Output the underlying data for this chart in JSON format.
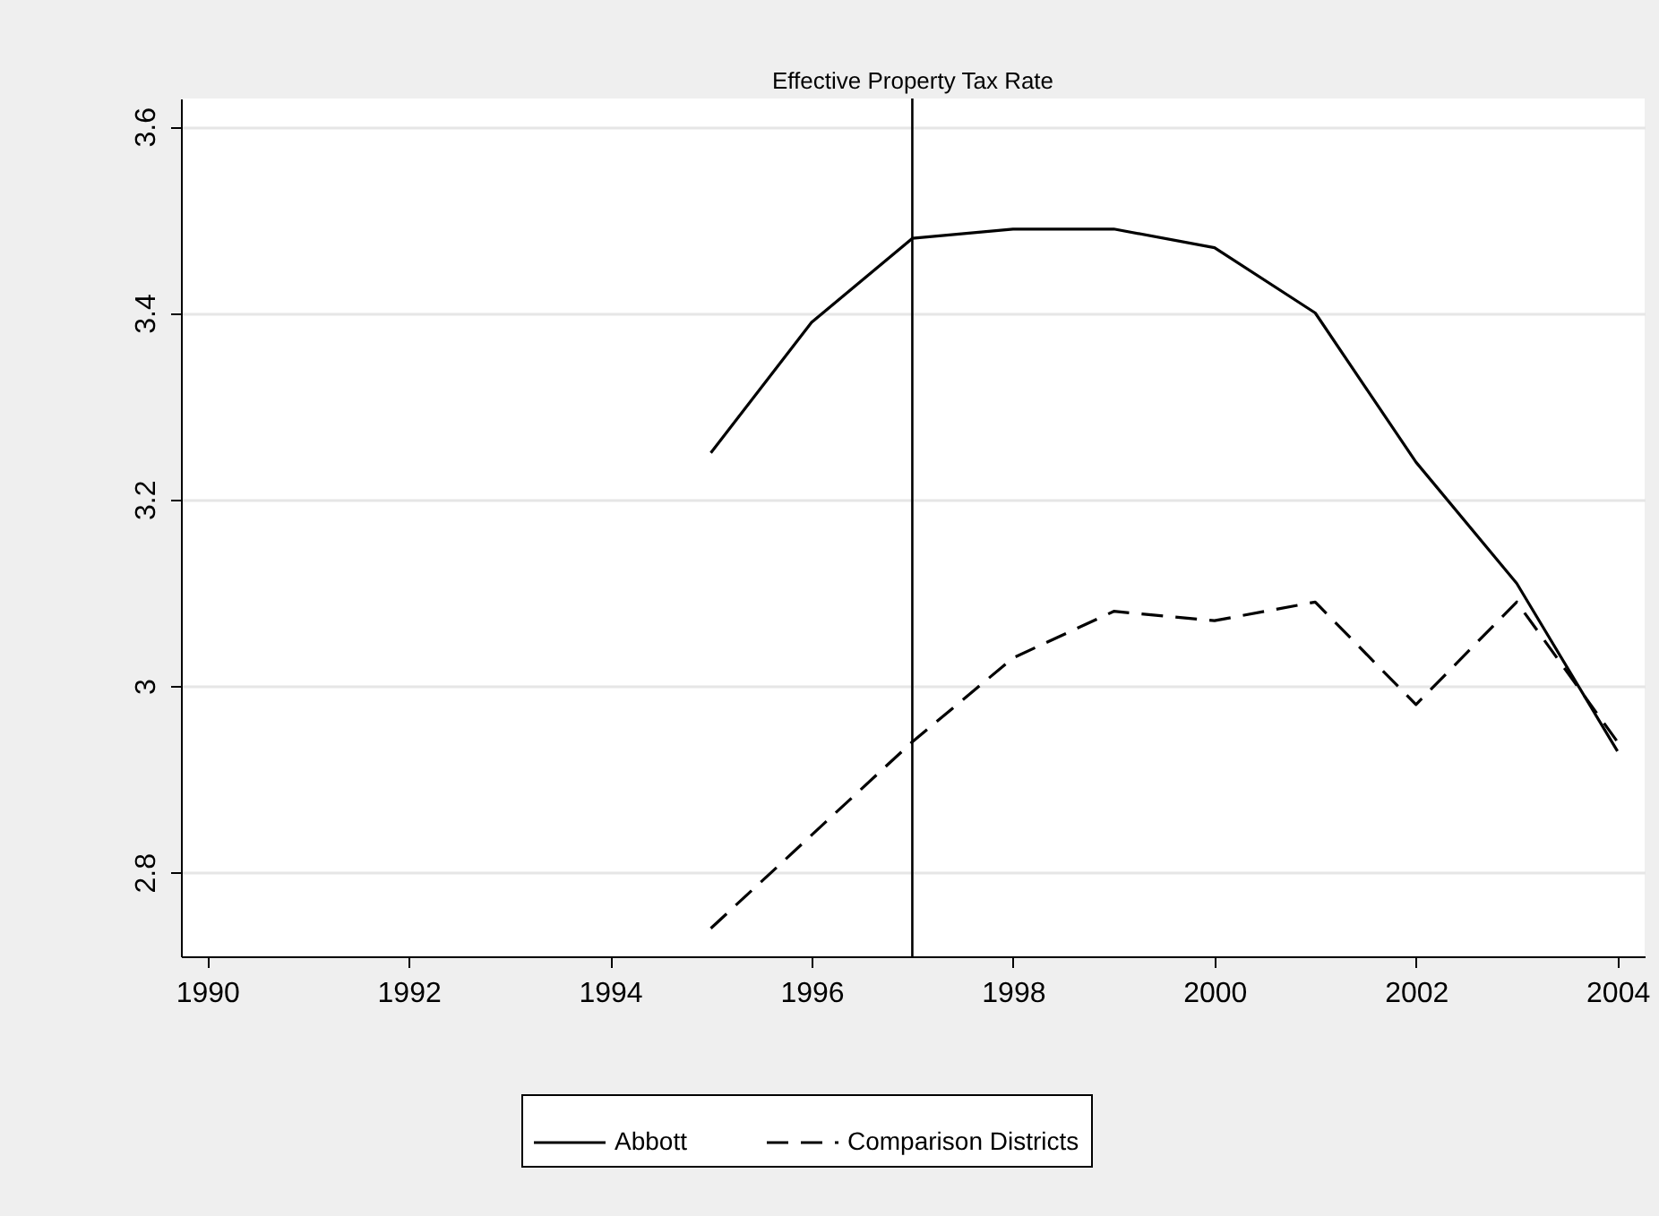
{
  "chart_data": {
    "type": "line",
    "title": "Effective Property Tax Rate",
    "x": [
      1995,
      1996,
      1997,
      1998,
      1999,
      2000,
      2001,
      2002,
      2003,
      2004
    ],
    "series": [
      {
        "name": "Abbott",
        "color": "#000000",
        "line_style": "solid",
        "values": [
          3.25,
          3.39,
          3.48,
          3.49,
          3.49,
          3.47,
          3.4,
          3.24,
          3.11,
          2.93
        ]
      },
      {
        "name": "Comparison Districts",
        "color": "#000000",
        "line_style": "dashed",
        "values": [
          2.74,
          2.84,
          2.94,
          3.03,
          3.08,
          3.07,
          3.09,
          2.98,
          3.09,
          2.94
        ]
      }
    ],
    "xlim": [
      1989.74,
      2004.27
    ],
    "xticks": [
      1990,
      1992,
      1994,
      1996,
      1998,
      2000,
      2002,
      2004
    ],
    "ylim": [
      2.71,
      3.63
    ],
    "yticks": [
      2.8,
      3,
      3.2,
      3.4,
      3.6
    ],
    "ref_lines": [
      {
        "axis": "x",
        "value": 1997,
        "color": "#000000"
      }
    ],
    "grid": "y",
    "legend": "bottom",
    "marker": "none"
  }
}
